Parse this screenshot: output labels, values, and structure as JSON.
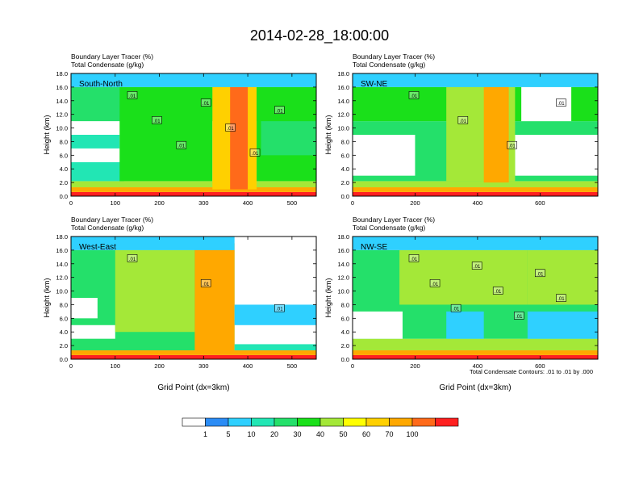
{
  "title": "2014-02-28_18:00:00",
  "footnote": "Total Condensate Contours: .01 to .01 by .000",
  "colorbar": {
    "colors": [
      "#ffffff",
      "#2b8cf5",
      "#2fd0ff",
      "#22e6b4",
      "#24e06a",
      "#1ae01a",
      "#a4e838",
      "#ffff00",
      "#ffd000",
      "#ffa800",
      "#ff6a1a",
      "#ff2020"
    ],
    "labels": [
      "1",
      "5",
      "10",
      "20",
      "30",
      "40",
      "50",
      "60",
      "70",
      "100"
    ]
  },
  "chart_data": [
    {
      "type": "heatmap",
      "panel": "South-North",
      "subtitle_left": "Boundary Layer Tracer",
      "subtitle_left_units": "(%)",
      "subtitle_left2": "Total Condensate",
      "subtitle_left2_units": "(g/kg)",
      "ylabel": "Height (km)",
      "xlabel": "",
      "xlim": [
        0,
        555
      ],
      "ylim": [
        0,
        18
      ],
      "xticks": [
        "0",
        "100",
        "200",
        "300",
        "400",
        "500"
      ],
      "xtick_values": [
        0,
        100,
        200,
        300,
        400,
        500
      ],
      "yticks": [
        "0.0",
        "2.0",
        "4.0",
        "6.0",
        "8.0",
        "10.0",
        "12.0",
        "14.0",
        "16.0",
        "18.0"
      ],
      "contour_labels": [
        ".01",
        ".01",
        ".01",
        ".01",
        ".01",
        ".01",
        ".01"
      ],
      "bands": [
        {
          "x": [
            0,
            555
          ],
          "y": [
            0,
            0.6
          ],
          "level": 11
        },
        {
          "x": [
            0,
            555
          ],
          "y": [
            0.6,
            1.3
          ],
          "level": 9
        },
        {
          "x": [
            0,
            555
          ],
          "y": [
            1.3,
            2.2
          ],
          "level": 6
        },
        {
          "x": [
            0,
            120
          ],
          "y": [
            2.2,
            5
          ],
          "level": 3
        },
        {
          "x": [
            0,
            110
          ],
          "y": [
            5,
            7
          ],
          "level": 0
        },
        {
          "x": [
            0,
            110
          ],
          "y": [
            9,
            11
          ],
          "level": 0
        },
        {
          "x": [
            0,
            110
          ],
          "y": [
            7,
            9
          ],
          "level": 3
        },
        {
          "x": [
            0,
            555
          ],
          "y": [
            11,
            16
          ],
          "level": 4
        },
        {
          "x": [
            110,
            320
          ],
          "y": [
            2.2,
            16
          ],
          "level": 5
        },
        {
          "x": [
            320,
            420
          ],
          "y": [
            1,
            17
          ],
          "level": 8
        },
        {
          "x": [
            360,
            400
          ],
          "y": [
            1,
            16
          ],
          "level": 10
        },
        {
          "x": [
            420,
            555
          ],
          "y": [
            2.2,
            16
          ],
          "level": 5
        },
        {
          "x": [
            430,
            555
          ],
          "y": [
            6,
            11
          ],
          "level": 4
        },
        {
          "x": [
            0,
            555
          ],
          "y": [
            16,
            18
          ],
          "level": 2
        }
      ]
    },
    {
      "type": "heatmap",
      "panel": "SW-NE",
      "subtitle_left": "Boundary Layer Tracer",
      "subtitle_left_units": "(%)",
      "subtitle_left2": "Total Condensate",
      "subtitle_left2_units": "(g/kg)",
      "ylabel": "Height (km)",
      "xlabel": "",
      "xlim": [
        0,
        785
      ],
      "ylim": [
        0,
        18
      ],
      "xticks": [
        "0",
        "200",
        "400",
        "600"
      ],
      "xtick_values": [
        0,
        200,
        400,
        600
      ],
      "yticks": [
        "0.0",
        "2.0",
        "4.0",
        "6.0",
        "8.0",
        "10.0",
        "12.0",
        "14.0",
        "16.0",
        "18.0"
      ],
      "contour_labels": [
        ".01",
        ".01",
        ".01",
        ".01"
      ],
      "bands": [
        {
          "x": [
            0,
            785
          ],
          "y": [
            0,
            0.6
          ],
          "level": 11
        },
        {
          "x": [
            0,
            785
          ],
          "y": [
            0.6,
            1.3
          ],
          "level": 9
        },
        {
          "x": [
            0,
            785
          ],
          "y": [
            1.3,
            2.2
          ],
          "level": 6
        },
        {
          "x": [
            0,
            785
          ],
          "y": [
            2.2,
            11
          ],
          "level": 4
        },
        {
          "x": [
            0,
            200
          ],
          "y": [
            3,
            9
          ],
          "level": 0
        },
        {
          "x": [
            520,
            785
          ],
          "y": [
            3,
            9
          ],
          "level": 0
        },
        {
          "x": [
            0,
            785
          ],
          "y": [
            11,
            16
          ],
          "level": 5
        },
        {
          "x": [
            540,
            700
          ],
          "y": [
            11,
            16
          ],
          "level": 0
        },
        {
          "x": [
            300,
            520
          ],
          "y": [
            2.2,
            17
          ],
          "level": 6
        },
        {
          "x": [
            420,
            500
          ],
          "y": [
            2,
            17
          ],
          "level": 9
        },
        {
          "x": [
            0,
            785
          ],
          "y": [
            16,
            18
          ],
          "level": 2
        }
      ]
    },
    {
      "type": "heatmap",
      "panel": "West-East",
      "subtitle_left": "Boundary Layer Tracer",
      "subtitle_left_units": "(%)",
      "subtitle_left2": "Total Condensate",
      "subtitle_left2_units": "(g/kg)",
      "ylabel": "Height (km)",
      "xlabel": "Grid Point (dx=3km)",
      "xlim": [
        0,
        555
      ],
      "ylim": [
        0,
        18
      ],
      "xticks": [
        "0",
        "100",
        "200",
        "300",
        "400",
        "500"
      ],
      "xtick_values": [
        0,
        100,
        200,
        300,
        400,
        500
      ],
      "yticks": [
        "0.0",
        "2.0",
        "4.0",
        "6.0",
        "8.0",
        "10.0",
        "12.0",
        "14.0",
        "16.0",
        "18.0"
      ],
      "contour_labels": [
        ".01",
        ".01",
        ".01"
      ],
      "bands": [
        {
          "x": [
            0,
            555
          ],
          "y": [
            0,
            0.6
          ],
          "level": 11
        },
        {
          "x": [
            0,
            555
          ],
          "y": [
            0.6,
            1.3
          ],
          "level": 9
        },
        {
          "x": [
            0,
            370
          ],
          "y": [
            1.3,
            16
          ],
          "level": 4
        },
        {
          "x": [
            0,
            60
          ],
          "y": [
            6,
            9
          ],
          "level": 0
        },
        {
          "x": [
            0,
            100
          ],
          "y": [
            3,
            5
          ],
          "level": 0
        },
        {
          "x": [
            100,
            280
          ],
          "y": [
            4,
            16
          ],
          "level": 6
        },
        {
          "x": [
            280,
            370
          ],
          "y": [
            1,
            17
          ],
          "level": 9
        },
        {
          "x": [
            370,
            555
          ],
          "y": [
            5,
            8
          ],
          "level": 2
        },
        {
          "x": [
            0,
            370
          ],
          "y": [
            16,
            18
          ],
          "level": 2
        },
        {
          "x": [
            370,
            555
          ],
          "y": [
            1.3,
            2.2
          ],
          "level": 3
        }
      ]
    },
    {
      "type": "heatmap",
      "panel": "NW-SE",
      "subtitle_left": "Boundary Layer Tracer",
      "subtitle_left_units": "(%)",
      "subtitle_left2": "Total Condensate",
      "subtitle_left2_units": "(g/kg)",
      "ylabel": "Height (km)",
      "xlabel": "Grid Point (dx=3km)",
      "xlim": [
        0,
        785
      ],
      "ylim": [
        0,
        18
      ],
      "xticks": [
        "0",
        "200",
        "400",
        "600"
      ],
      "xtick_values": [
        0,
        200,
        400,
        600
      ],
      "yticks": [
        "0.0",
        "2.0",
        "4.0",
        "6.0",
        "8.0",
        "10.0",
        "12.0",
        "14.0",
        "16.0",
        "18.0"
      ],
      "contour_labels": [
        ".01",
        ".01",
        ".01",
        ".01",
        ".01",
        ".01",
        ".01",
        ".01"
      ],
      "bands": [
        {
          "x": [
            0,
            785
          ],
          "y": [
            0,
            0.6
          ],
          "level": 11
        },
        {
          "x": [
            0,
            785
          ],
          "y": [
            0.6,
            1.3
          ],
          "level": 9
        },
        {
          "x": [
            0,
            785
          ],
          "y": [
            1.3,
            3
          ],
          "level": 6
        },
        {
          "x": [
            0,
            785
          ],
          "y": [
            3,
            16
          ],
          "level": 4
        },
        {
          "x": [
            0,
            160
          ],
          "y": [
            3,
            7
          ],
          "level": 0
        },
        {
          "x": [
            300,
            420
          ],
          "y": [
            3,
            7
          ],
          "level": 2
        },
        {
          "x": [
            560,
            785
          ],
          "y": [
            3,
            7
          ],
          "level": 2
        },
        {
          "x": [
            150,
            560
          ],
          "y": [
            8,
            16
          ],
          "level": 6
        },
        {
          "x": [
            560,
            785
          ],
          "y": [
            8,
            16
          ],
          "level": 6
        },
        {
          "x": [
            0,
            785
          ],
          "y": [
            16,
            18
          ],
          "level": 2
        }
      ]
    }
  ]
}
